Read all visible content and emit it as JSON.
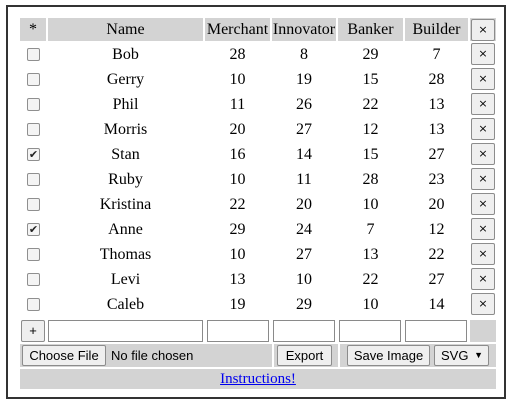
{
  "table": {
    "columns": {
      "select": "*",
      "name": "Name",
      "merchant": "Merchant",
      "innovator": "Innovator",
      "banker": "Banker",
      "builder": "Builder"
    },
    "header_delete_label": "×",
    "row_delete_label": "×",
    "rows": [
      {
        "checked": false,
        "name": "Bob",
        "merchant": "28",
        "innovator": "8",
        "banker": "29",
        "builder": "7"
      },
      {
        "checked": false,
        "name": "Gerry",
        "merchant": "10",
        "innovator": "19",
        "banker": "15",
        "builder": "28"
      },
      {
        "checked": false,
        "name": "Phil",
        "merchant": "11",
        "innovator": "26",
        "banker": "22",
        "builder": "13"
      },
      {
        "checked": false,
        "name": "Morris",
        "merchant": "20",
        "innovator": "27",
        "banker": "12",
        "builder": "13"
      },
      {
        "checked": true,
        "name": "Stan",
        "merchant": "16",
        "innovator": "14",
        "banker": "15",
        "builder": "27"
      },
      {
        "checked": false,
        "name": "Ruby",
        "merchant": "10",
        "innovator": "11",
        "banker": "28",
        "builder": "23"
      },
      {
        "checked": false,
        "name": "Kristina",
        "merchant": "22",
        "innovator": "20",
        "banker": "10",
        "builder": "20"
      },
      {
        "checked": true,
        "name": "Anne",
        "merchant": "29",
        "innovator": "24",
        "banker": "7",
        "builder": "12"
      },
      {
        "checked": false,
        "name": "Thomas",
        "merchant": "10",
        "innovator": "27",
        "banker": "13",
        "builder": "22"
      },
      {
        "checked": false,
        "name": "Levi",
        "merchant": "13",
        "innovator": "10",
        "banker": "22",
        "builder": "27"
      },
      {
        "checked": false,
        "name": "Caleb",
        "merchant": "19",
        "innovator": "29",
        "banker": "10",
        "builder": "14"
      }
    ],
    "add_row_label": "+",
    "new_row_values": {
      "name": "",
      "merchant": "",
      "innovator": "",
      "banker": "",
      "builder": ""
    }
  },
  "toolbar": {
    "choose_file_label": "Choose File",
    "no_file_text": "No file chosen",
    "export_label": "Export",
    "save_image_label": "Save Image",
    "format_select_value": "SVG"
  },
  "footer": {
    "instructions_link": "Instructions!"
  }
}
